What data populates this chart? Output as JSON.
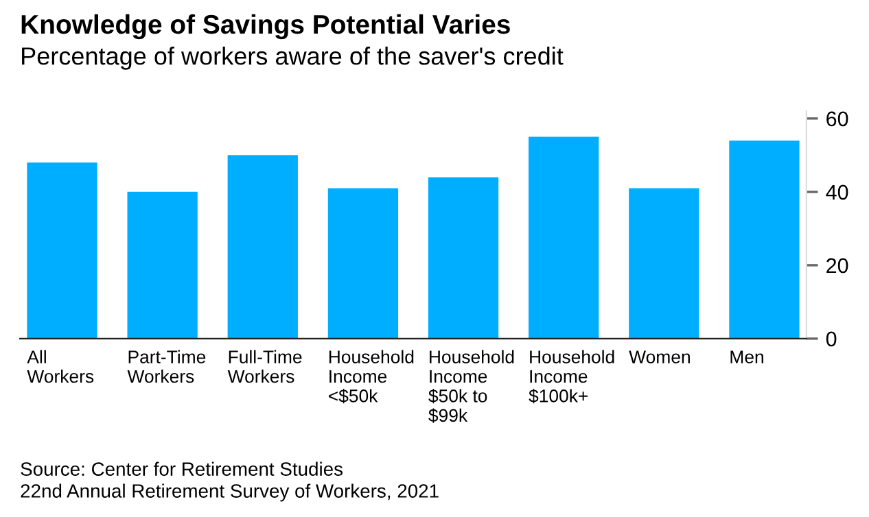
{
  "chart_data": {
    "type": "bar",
    "title": "Knowledge of Savings Potential Varies",
    "subtitle": "Percentage of workers aware of the saver's credit",
    "categories": [
      "All\nWorkers",
      "Part-Time\nWorkers",
      "Full-Time\nWorkers",
      "Household\nIncome\n<$50k",
      "Household\nIncome\n$50k to\n$99k",
      "Household\nIncome\n$100k+",
      "Women",
      "Men"
    ],
    "values": [
      48,
      40,
      50,
      41,
      44,
      55,
      41,
      54
    ],
    "color": "#00aeff",
    "ylim": [
      0,
      62
    ],
    "yticks": [
      0,
      20,
      40,
      60
    ],
    "grid": false,
    "annotations": [
      "Source: Center for Retirement Studies\n22nd Annual Retirement Survey of Workers, 2021"
    ]
  }
}
